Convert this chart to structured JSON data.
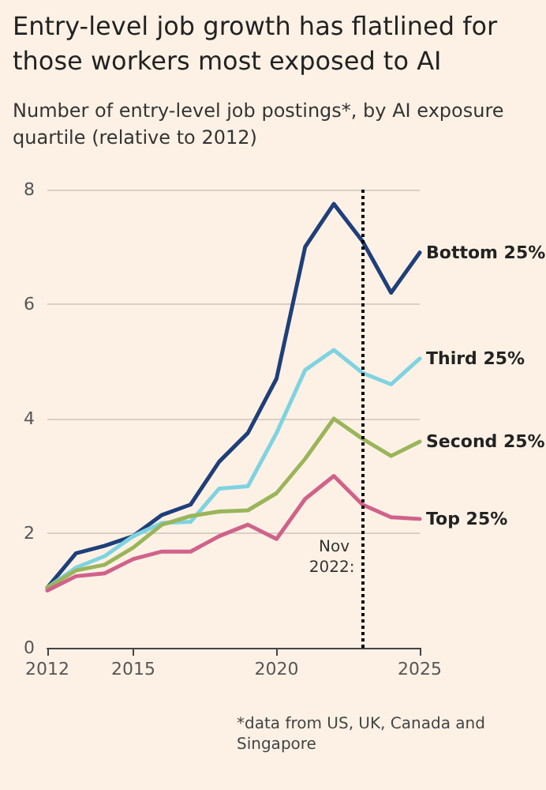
{
  "chart_data": {
    "type": "line",
    "title": "Entry-level job growth has flatlined for those workers most exposed to AI",
    "subtitle": "Number of entry-level job postings*, by AI exposure quartile (relative to 2012)",
    "x": [
      2012,
      2013,
      2014,
      2015,
      2016,
      2017,
      2018,
      2019,
      2020,
      2021,
      2022,
      2023,
      2024,
      2025
    ],
    "series": [
      {
        "name": "Bottom 25%",
        "color": "#1f3f7a",
        "values": [
          1.05,
          1.65,
          1.78,
          1.95,
          2.32,
          2.5,
          3.25,
          3.75,
          4.7,
          7.0,
          7.75,
          7.1,
          6.2,
          6.9
        ]
      },
      {
        "name": "Third 25%",
        "color": "#7fd3e0",
        "values": [
          1.05,
          1.4,
          1.6,
          1.95,
          2.18,
          2.2,
          2.78,
          2.82,
          3.75,
          4.85,
          5.2,
          4.8,
          4.6,
          5.05
        ]
      },
      {
        "name": "Second 25%",
        "color": "#9ab55a",
        "values": [
          1.05,
          1.35,
          1.45,
          1.75,
          2.15,
          2.3,
          2.38,
          2.4,
          2.7,
          3.3,
          4.0,
          3.65,
          3.35,
          3.6
        ]
      },
      {
        "name": "Top 25%",
        "color": "#d0628a",
        "values": [
          1.0,
          1.25,
          1.3,
          1.55,
          1.68,
          1.68,
          1.95,
          2.15,
          1.9,
          2.6,
          3.0,
          2.5,
          2.28,
          2.25
        ]
      }
    ],
    "xlim": [
      2012,
      2025
    ],
    "xticks": [
      2012,
      2015,
      2020,
      2025
    ],
    "ylim": [
      0,
      8
    ],
    "yticks": [
      0,
      2,
      4,
      6,
      8
    ],
    "ref_lines": [
      {
        "axis": "x",
        "value": 2023,
        "label": "Nov 2022:",
        "color": "#000000",
        "line_style": "dotted"
      }
    ],
    "annotations": [
      "*data from US, UK, Canada and Singapore"
    ],
    "grid": "y",
    "legend": false,
    "marker": "none",
    "line_style": "solid"
  }
}
